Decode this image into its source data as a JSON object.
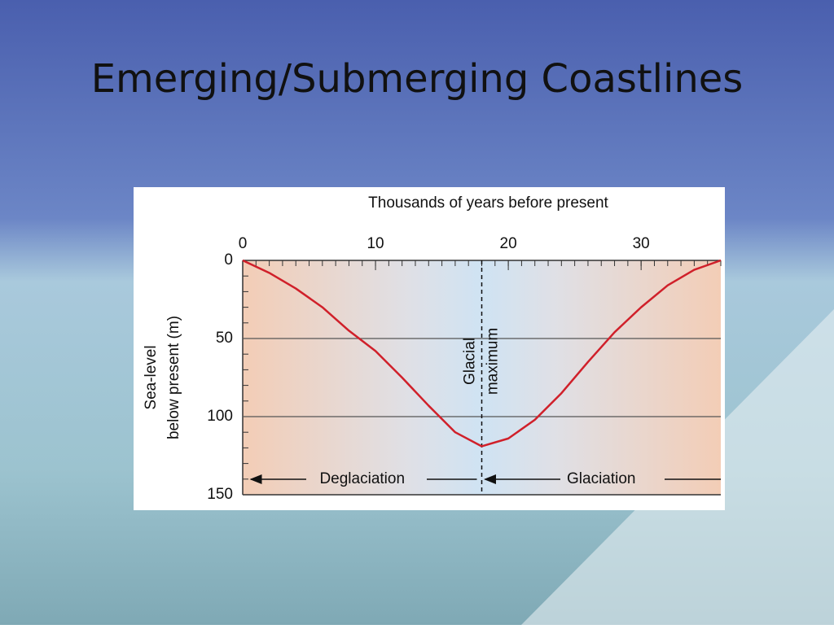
{
  "title": "Emerging/Submerging Coastlines",
  "chart_data": {
    "type": "line",
    "x_label": "Thousands of years before present",
    "y_label": [
      "Sea-level",
      "below present (m)"
    ],
    "x": [
      0,
      2,
      4,
      6,
      8,
      10,
      12,
      14,
      16,
      18,
      20,
      22,
      24,
      26,
      28,
      30,
      32,
      34,
      36
    ],
    "series": [
      {
        "color": "#d0202a",
        "values": [
          0,
          8,
          18,
          30,
          45,
          58,
          75,
          93,
          110,
          119,
          114,
          102,
          85,
          65,
          46,
          30,
          16,
          6,
          0
        ]
      }
    ],
    "xlim": [
      0,
      36
    ],
    "xticks": [
      0,
      10,
      20,
      30
    ],
    "ylim": [
      150,
      0
    ],
    "yticks": [
      0,
      50,
      100,
      150
    ],
    "grid_lines": [
      50,
      100
    ],
    "annotations": [
      {
        "text": [
          "Glacial",
          "maximum"
        ],
        "x": 18
      },
      {
        "text": "Deglaciation"
      },
      {
        "text": "Glaciation"
      }
    ]
  }
}
